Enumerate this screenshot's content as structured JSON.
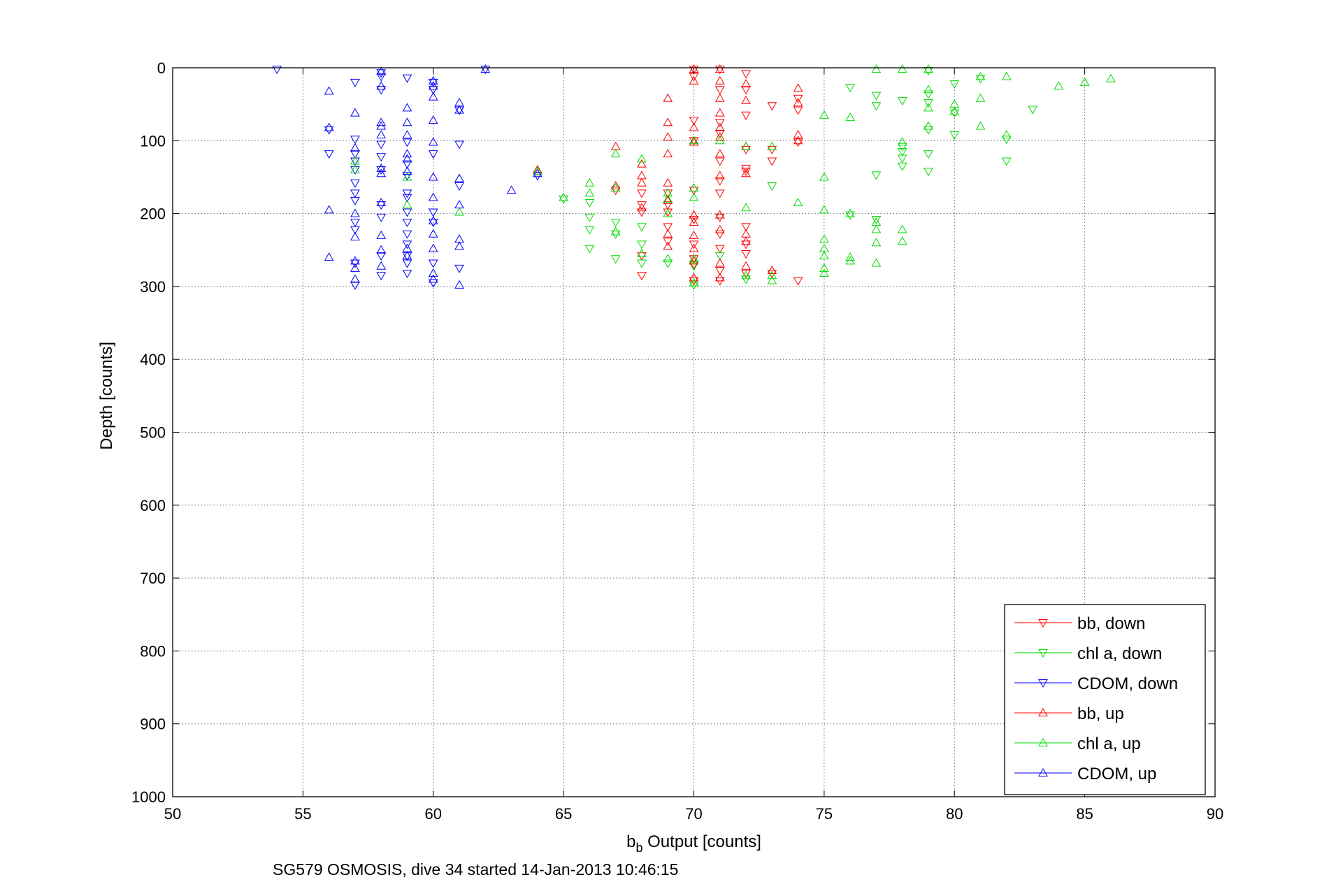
{
  "chart_data": {
    "type": "scatter",
    "title": "",
    "xlabel_main": "b",
    "xlabel_sub": "b",
    "xlabel_rest": " Output [counts]",
    "ylabel": "Depth [counts]",
    "caption": "SG579 OSMOSIS, dive 34 started 14-Jan-2013 10:46:15",
    "xlim": [
      50,
      90
    ],
    "ylim": [
      0,
      1000
    ],
    "y_reversed": true,
    "grid": true,
    "legend_position": "bottom-right",
    "xticks": [
      "50",
      "55",
      "60",
      "65",
      "70",
      "75",
      "80",
      "85",
      "90"
    ],
    "yticks": [
      "0",
      "100",
      "200",
      "300",
      "400",
      "500",
      "600",
      "700",
      "800",
      "900",
      "1000"
    ],
    "series": [
      {
        "name": "bb, down",
        "color": "#ff0000",
        "marker": "triangle-down",
        "points": [
          [
            70,
            2
          ],
          [
            70,
            12
          ],
          [
            71,
            2
          ],
          [
            72,
            8
          ],
          [
            71,
            30
          ],
          [
            72,
            30
          ],
          [
            72,
            65
          ],
          [
            73,
            52
          ],
          [
            74,
            42
          ],
          [
            74,
            58
          ],
          [
            70,
            72
          ],
          [
            71,
            75
          ],
          [
            71,
            90
          ],
          [
            70,
            100
          ],
          [
            74,
            102
          ],
          [
            73,
            112
          ],
          [
            72,
            112
          ],
          [
            73,
            128
          ],
          [
            71,
            128
          ],
          [
            72,
            142
          ],
          [
            71,
            155
          ],
          [
            70,
            168
          ],
          [
            71,
            172
          ],
          [
            70,
            208
          ],
          [
            71,
            205
          ],
          [
            72,
            218
          ],
          [
            71,
            228
          ],
          [
            72,
            242
          ],
          [
            70,
            242
          ],
          [
            71,
            248
          ],
          [
            72,
            255
          ],
          [
            70,
            262
          ],
          [
            70,
            270
          ],
          [
            71,
            278
          ],
          [
            72,
            282
          ],
          [
            73,
            282
          ],
          [
            71,
            292
          ],
          [
            70,
            292
          ],
          [
            74,
            292
          ],
          [
            69,
            172
          ],
          [
            69,
            188
          ],
          [
            68,
            172
          ],
          [
            68,
            188
          ],
          [
            68,
            198
          ],
          [
            69,
            198
          ],
          [
            69,
            218
          ],
          [
            69,
            238
          ],
          [
            68,
            258
          ],
          [
            68,
            285
          ],
          [
            67,
            168
          ],
          [
            72,
            138
          ]
        ]
      },
      {
        "name": "chl a, down",
        "color": "#00dd00",
        "marker": "triangle-down",
        "points": [
          [
            79,
            4
          ],
          [
            80,
            22
          ],
          [
            76,
            27
          ],
          [
            79,
            36
          ],
          [
            77,
            38
          ],
          [
            81,
            15
          ],
          [
            78,
            45
          ],
          [
            79,
            48
          ],
          [
            77,
            52
          ],
          [
            83,
            57
          ],
          [
            80,
            62
          ],
          [
            80,
            92
          ],
          [
            79,
            85
          ],
          [
            82,
            98
          ],
          [
            78,
            108
          ],
          [
            78,
            115
          ],
          [
            79,
            118
          ],
          [
            78,
            124
          ],
          [
            82,
            128
          ],
          [
            78,
            135
          ],
          [
            79,
            142
          ],
          [
            77,
            147
          ],
          [
            73,
            162
          ],
          [
            66,
            185
          ],
          [
            67,
            228
          ],
          [
            66,
            222
          ],
          [
            66,
            205
          ],
          [
            68,
            218
          ],
          [
            68,
            242
          ],
          [
            67,
            262
          ],
          [
            68,
            268
          ],
          [
            69,
            268
          ],
          [
            70,
            272
          ],
          [
            71,
            258
          ],
          [
            72,
            290
          ],
          [
            70,
            298
          ],
          [
            76,
            202
          ],
          [
            77,
            208
          ],
          [
            66,
            248
          ],
          [
            67,
            212
          ],
          [
            65,
            180
          ]
        ]
      },
      {
        "name": "CDOM, down",
        "color": "#0000ff",
        "marker": "triangle-down",
        "points": [
          [
            54,
            2
          ],
          [
            62,
            2
          ],
          [
            58,
            7
          ],
          [
            58,
            12
          ],
          [
            57,
            20
          ],
          [
            59,
            14
          ],
          [
            60,
            20
          ],
          [
            58,
            30
          ],
          [
            60,
            30
          ],
          [
            61,
            58
          ],
          [
            56,
            85
          ],
          [
            56,
            118
          ],
          [
            57,
            98
          ],
          [
            57,
            118
          ],
          [
            57,
            128
          ],
          [
            57,
            140
          ],
          [
            57,
            158
          ],
          [
            57,
            172
          ],
          [
            57,
            182
          ],
          [
            58,
            105
          ],
          [
            58,
            122
          ],
          [
            58,
            140
          ],
          [
            58,
            188
          ],
          [
            58,
            205
          ],
          [
            57,
            212
          ],
          [
            57,
            222
          ],
          [
            57,
            268
          ],
          [
            57,
            298
          ],
          [
            59,
            102
          ],
          [
            59,
            132
          ],
          [
            59,
            148
          ],
          [
            59,
            172
          ],
          [
            59,
            178
          ],
          [
            59,
            198
          ],
          [
            59,
            212
          ],
          [
            59,
            228
          ],
          [
            59,
            242
          ],
          [
            59,
            258
          ],
          [
            59,
            268
          ],
          [
            59,
            282
          ],
          [
            60,
            118
          ],
          [
            60,
            198
          ],
          [
            60,
            212
          ],
          [
            60,
            268
          ],
          [
            60,
            295
          ],
          [
            61,
            58
          ],
          [
            61,
            105
          ],
          [
            61,
            275
          ],
          [
            64,
            148
          ],
          [
            58,
            258
          ],
          [
            58,
            285
          ],
          [
            61,
            162
          ]
        ]
      },
      {
        "name": "bb, up",
        "color": "#ff0000",
        "marker": "triangle-up",
        "points": [
          [
            70,
            2
          ],
          [
            71,
            2
          ],
          [
            70,
            18
          ],
          [
            71,
            18
          ],
          [
            72,
            22
          ],
          [
            74,
            28
          ],
          [
            71,
            42
          ],
          [
            69,
            42
          ],
          [
            72,
            45
          ],
          [
            74,
            48
          ],
          [
            71,
            62
          ],
          [
            69,
            75
          ],
          [
            70,
            82
          ],
          [
            71,
            82
          ],
          [
            71,
            95
          ],
          [
            69,
            95
          ],
          [
            72,
            108
          ],
          [
            67,
            108
          ],
          [
            68,
            132
          ],
          [
            69,
            118
          ],
          [
            71,
            118
          ],
          [
            72,
            145
          ],
          [
            71,
            148
          ],
          [
            69,
            158
          ],
          [
            68,
            148
          ],
          [
            68,
            158
          ],
          [
            69,
            182
          ],
          [
            69,
            228
          ],
          [
            71,
            222
          ],
          [
            72,
            228
          ],
          [
            68,
            192
          ],
          [
            70,
            202
          ],
          [
            70,
            212
          ],
          [
            71,
            202
          ],
          [
            72,
            238
          ],
          [
            70,
            248
          ],
          [
            69,
            245
          ],
          [
            70,
            265
          ],
          [
            71,
            268
          ],
          [
            72,
            272
          ],
          [
            73,
            278
          ],
          [
            70,
            288
          ],
          [
            71,
            288
          ],
          [
            64,
            140
          ],
          [
            74,
            92
          ],
          [
            74,
            100
          ],
          [
            67,
            162
          ],
          [
            70,
            102
          ],
          [
            70,
            230
          ]
        ]
      },
      {
        "name": "chl a, up",
        "color": "#00dd00",
        "marker": "triangle-up",
        "points": [
          [
            77,
            2
          ],
          [
            78,
            2
          ],
          [
            79,
            2
          ],
          [
            82,
            12
          ],
          [
            81,
            12
          ],
          [
            86,
            15
          ],
          [
            85,
            20
          ],
          [
            84,
            25
          ],
          [
            79,
            30
          ],
          [
            81,
            42
          ],
          [
            80,
            50
          ],
          [
            80,
            60
          ],
          [
            79,
            55
          ],
          [
            75,
            65
          ],
          [
            76,
            68
          ],
          [
            81,
            80
          ],
          [
            79,
            80
          ],
          [
            82,
            92
          ],
          [
            71,
            100
          ],
          [
            70,
            100
          ],
          [
            72,
            108
          ],
          [
            73,
            108
          ],
          [
            78,
            102
          ],
          [
            67,
            118
          ],
          [
            68,
            125
          ],
          [
            61,
            152
          ],
          [
            61,
            198
          ],
          [
            59,
            150
          ],
          [
            59,
            188
          ],
          [
            64,
            142
          ],
          [
            65,
            178
          ],
          [
            66,
            158
          ],
          [
            66,
            172
          ],
          [
            67,
            165
          ],
          [
            69,
            172
          ],
          [
            69,
            180
          ],
          [
            69,
            200
          ],
          [
            70,
            165
          ],
          [
            70,
            178
          ],
          [
            74,
            185
          ],
          [
            72,
            192
          ],
          [
            75,
            150
          ],
          [
            75,
            195
          ],
          [
            75,
            235
          ],
          [
            75,
            248
          ],
          [
            75,
            258
          ],
          [
            75,
            275
          ],
          [
            75,
            282
          ],
          [
            76,
            200
          ],
          [
            76,
            260
          ],
          [
            76,
            265
          ],
          [
            77,
            222
          ],
          [
            77,
            240
          ],
          [
            77,
            268
          ],
          [
            77,
            212
          ],
          [
            78,
            222
          ],
          [
            78,
            238
          ],
          [
            67,
            225
          ],
          [
            68,
            255
          ],
          [
            70,
            262
          ],
          [
            72,
            285
          ],
          [
            73,
            285
          ],
          [
            73,
            292
          ],
          [
            70,
            295
          ],
          [
            69,
            262
          ],
          [
            57,
            140
          ],
          [
            57,
            128
          ]
        ]
      },
      {
        "name": "CDOM, up",
        "color": "#0000ff",
        "marker": "triangle-up",
        "points": [
          [
            62,
            2
          ],
          [
            58,
            5
          ],
          [
            60,
            18
          ],
          [
            60,
            25
          ],
          [
            58,
            25
          ],
          [
            56,
            32
          ],
          [
            60,
            40
          ],
          [
            61,
            48
          ],
          [
            61,
            58
          ],
          [
            59,
            55
          ],
          [
            57,
            62
          ],
          [
            59,
            75
          ],
          [
            58,
            75
          ],
          [
            58,
            80
          ],
          [
            56,
            82
          ],
          [
            60,
            72
          ],
          [
            59,
            92
          ],
          [
            58,
            92
          ],
          [
            57,
            110
          ],
          [
            59,
            118
          ],
          [
            60,
            102
          ],
          [
            58,
            138
          ],
          [
            58,
            145
          ],
          [
            59,
            125
          ],
          [
            60,
            150
          ],
          [
            61,
            152
          ],
          [
            60,
            178
          ],
          [
            61,
            188
          ],
          [
            56,
            195
          ],
          [
            57,
            200
          ],
          [
            58,
            185
          ],
          [
            60,
            210
          ],
          [
            60,
            228
          ],
          [
            58,
            230
          ],
          [
            59,
            248
          ],
          [
            60,
            248
          ],
          [
            61,
            235
          ],
          [
            61,
            245
          ],
          [
            56,
            260
          ],
          [
            57,
            265
          ],
          [
            58,
            250
          ],
          [
            59,
            258
          ],
          [
            58,
            272
          ],
          [
            60,
            282
          ],
          [
            60,
            290
          ],
          [
            61,
            298
          ],
          [
            57,
            275
          ],
          [
            57,
            290
          ],
          [
            63,
            168
          ],
          [
            64,
            145
          ],
          [
            59,
            142
          ],
          [
            57,
            232
          ]
        ]
      }
    ]
  }
}
